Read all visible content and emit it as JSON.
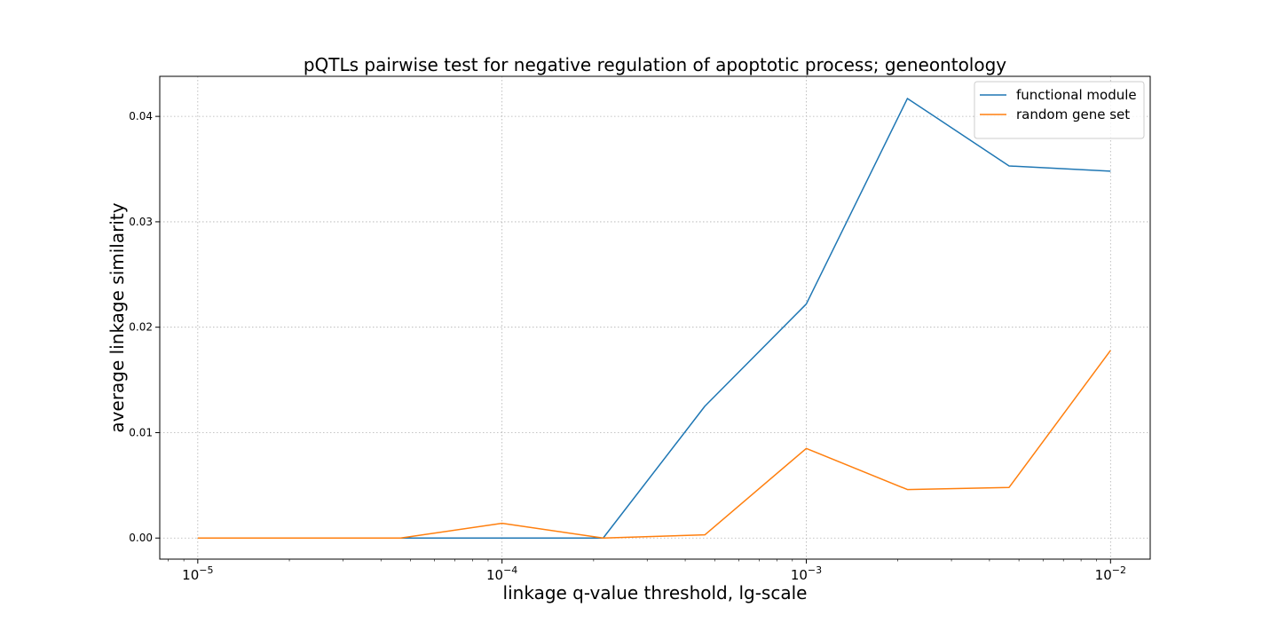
{
  "chart_data": {
    "type": "line",
    "title": "pQTLs pairwise test for negative regulation of apoptotic process; geneontology",
    "xlabel": "linkage q-value threshold, lg-scale",
    "ylabel": "average linkage similarity",
    "x_scale": "log",
    "xlim": [
      7.5e-06,
      0.0135
    ],
    "ylim": [
      -0.002,
      0.0438
    ],
    "x_ticks": [
      {
        "value": 1e-05,
        "base": "10",
        "exp": "−5"
      },
      {
        "value": 0.0001,
        "base": "10",
        "exp": "−4"
      },
      {
        "value": 0.001,
        "base": "10",
        "exp": "−3"
      },
      {
        "value": 0.01,
        "base": "10",
        "exp": "−2"
      }
    ],
    "y_ticks": [
      {
        "value": 0.0,
        "label": "0.00"
      },
      {
        "value": 0.01,
        "label": "0.01"
      },
      {
        "value": 0.02,
        "label": "0.02"
      },
      {
        "value": 0.03,
        "label": "0.03"
      },
      {
        "value": 0.04,
        "label": "0.04"
      }
    ],
    "grid": true,
    "legend_position": "top-right",
    "x": [
      1e-05,
      2.15e-05,
      4.64e-05,
      0.0001,
      0.000215,
      0.000464,
      0.001,
      0.00215,
      0.00464,
      0.01
    ],
    "series": [
      {
        "name": "functional module",
        "color": "#1f77b4",
        "values": [
          0.0,
          0.0,
          0.0,
          0.0,
          0.0,
          0.0125,
          0.0222,
          0.0417,
          0.0353,
          0.0348
        ]
      },
      {
        "name": "random gene set",
        "color": "#ff7f0e",
        "values": [
          0.0,
          0.0,
          0.0,
          0.0014,
          0.0,
          0.0003,
          0.0085,
          0.0046,
          0.0048,
          0.0178
        ]
      }
    ]
  }
}
